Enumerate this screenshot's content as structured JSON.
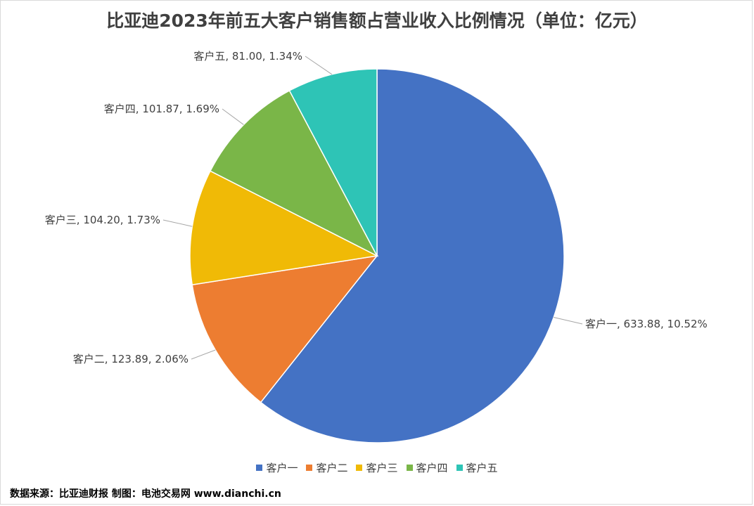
{
  "chart_data": {
    "type": "pie",
    "title": "比亚迪2023年前五大客户销售额占营业收入比例情况（单位：亿元）",
    "slices": [
      {
        "name": "客户一",
        "value": 633.88,
        "percent_label": "10.52%",
        "color": "#4472C4"
      },
      {
        "name": "客户二",
        "value": 123.89,
        "percent_label": "2.06%",
        "color": "#ED7D31"
      },
      {
        "name": "客户三",
        "value": 104.2,
        "percent_label": "1.73%",
        "color": "#F0BA06"
      },
      {
        "name": "客户四",
        "value": 101.87,
        "percent_label": "1.69%",
        "color": "#7AB648"
      },
      {
        "name": "客户五",
        "value": 81.0,
        "percent_label": "1.34%",
        "color": "#2EC4B6"
      }
    ],
    "legend_position": "bottom"
  },
  "source_text": "数据来源：比亚迪财报  制图：电池交易网 www.dianchi.cn"
}
